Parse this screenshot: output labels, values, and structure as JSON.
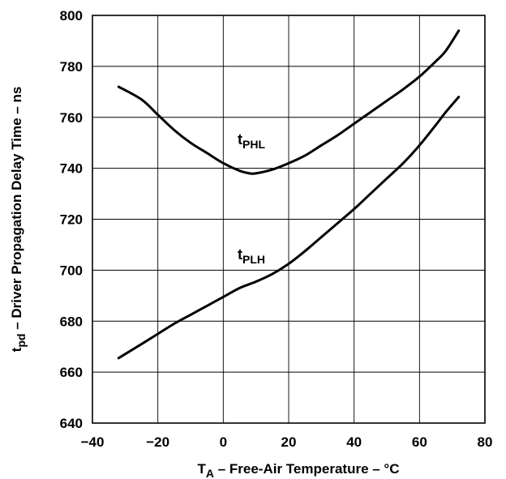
{
  "chart_data": {
    "type": "line",
    "xlabel": {
      "main": "T",
      "sub": "A",
      "rest": " – Free-Air Temperature – °C"
    },
    "ylabel": {
      "main": "t",
      "sub": "pd",
      "rest": " – Driver Propagation Delay Time – ns"
    },
    "xlim": [
      -40,
      80
    ],
    "ylim": [
      640,
      800
    ],
    "xticks": [
      -40,
      -20,
      0,
      20,
      40,
      60,
      80
    ],
    "yticks": [
      640,
      660,
      680,
      700,
      720,
      740,
      760,
      780,
      800
    ],
    "grid": true,
    "series": [
      {
        "name": "tPHL",
        "label_main": "t",
        "label_sub": "PHL",
        "x": [
          -32,
          -25,
          -20,
          -15,
          -10,
          -5,
          0,
          5,
          8,
          10,
          15,
          20,
          25,
          30,
          35,
          40,
          45,
          50,
          55,
          60,
          65,
          68,
          72
        ],
        "y": [
          772,
          767,
          761,
          755,
          750,
          746,
          742,
          739,
          738,
          738,
          739.5,
          742,
          745,
          749,
          753,
          757.5,
          762,
          766.5,
          771,
          776,
          782,
          786,
          794
        ]
      },
      {
        "name": "tPLH",
        "label_main": "t",
        "label_sub": "PLH",
        "x": [
          -32,
          -25,
          -20,
          -15,
          -10,
          -5,
          0,
          5,
          10,
          15,
          20,
          25,
          30,
          35,
          40,
          45,
          50,
          55,
          60,
          65,
          68,
          72
        ],
        "y": [
          665.5,
          671,
          675,
          679,
          682.5,
          686,
          689.5,
          693,
          695.5,
          698.5,
          702.5,
          707.5,
          713,
          718.5,
          724,
          730,
          736,
          742,
          749,
          757,
          762,
          768
        ]
      }
    ]
  }
}
